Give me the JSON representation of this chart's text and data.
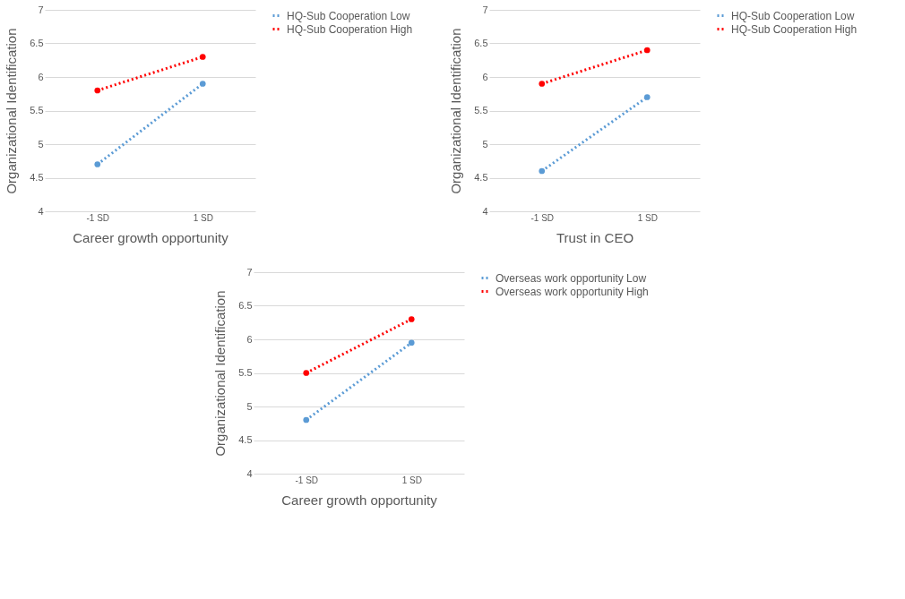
{
  "chart_data": [
    {
      "type": "line",
      "categories": [
        "-1 SD",
        "1 SD"
      ],
      "xlabel": "Career growth opportunity",
      "ylabel": "Organizational Identification",
      "ylim": [
        4,
        7
      ],
      "yticks": [
        4,
        4.5,
        5,
        5.5,
        6,
        6.5,
        7
      ],
      "grid": "y",
      "legend": "right",
      "marker": "circle",
      "line_style": "dotted",
      "series": [
        {
          "name": "HQ-Sub Cooperation Low",
          "color": "#5b9bd5",
          "values": [
            4.7,
            5.9
          ]
        },
        {
          "name": "HQ-Sub Cooperation High",
          "color": "#ff0000",
          "values": [
            5.8,
            6.3
          ]
        }
      ]
    },
    {
      "type": "line",
      "categories": [
        "-1 SD",
        "1 SD"
      ],
      "xlabel": "Trust in CEO",
      "ylabel": "Organizational Identification",
      "ylim": [
        4,
        7
      ],
      "yticks": [
        4,
        4.5,
        5,
        5.5,
        6,
        6.5,
        7
      ],
      "grid": "y",
      "legend": "right",
      "marker": "circle",
      "line_style": "dotted",
      "series": [
        {
          "name": "HQ-Sub Cooperation Low",
          "color": "#5b9bd5",
          "values": [
            4.6,
            5.7
          ]
        },
        {
          "name": "HQ-Sub Cooperation High",
          "color": "#ff0000",
          "values": [
            5.9,
            6.4
          ]
        }
      ]
    },
    {
      "type": "line",
      "categories": [
        "-1 SD",
        "1 SD"
      ],
      "xlabel": "Career growth opportunity",
      "ylabel": "Organizational Identification",
      "ylim": [
        4,
        7
      ],
      "yticks": [
        4,
        4.5,
        5,
        5.5,
        6,
        6.5,
        7
      ],
      "grid": "y",
      "legend": "right",
      "marker": "circle",
      "line_style": "dotted",
      "series": [
        {
          "name": "Overseas work opportunity Low",
          "color": "#5b9bd5",
          "values": [
            4.8,
            5.95
          ]
        },
        {
          "name": "Overseas work opportunity High",
          "color": "#ff0000",
          "values": [
            5.5,
            6.3
          ]
        }
      ]
    }
  ]
}
